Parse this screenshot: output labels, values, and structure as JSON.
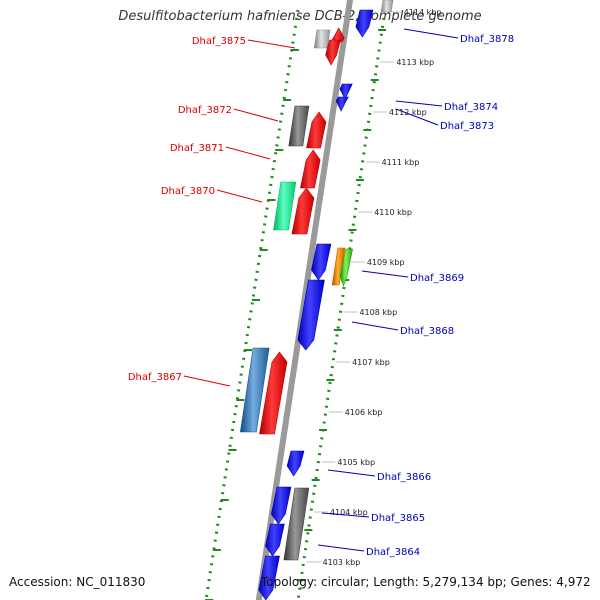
{
  "title": "Desulfitobacterium hafniense DCB-2, complete genome",
  "footer": {
    "accession": "Accession: NC_011830",
    "topology": "Topology: circular; Length: 5,279,134 bp; Genes: 4,972"
  },
  "colors": {
    "forward_label": "#dd0000",
    "reverse_label": "#0000bb",
    "backbone": "#9a9a9a",
    "dotted_track": "#228822",
    "gene_red": "#ee1111",
    "gene_blue": "#1a1aee",
    "gene_gray": "#6f6f6f",
    "gene_light_gray": "#bbbbbb",
    "gene_teal": "#33ee99",
    "gene_steelblue": "#4a84b8",
    "gene_orange": "#ff8800",
    "gene_green": "#55cc33"
  },
  "ticks": [
    {
      "label": "4114 kbp",
      "faded": true
    },
    {
      "label": "4113 kbp"
    },
    {
      "label": "4112 kbp"
    },
    {
      "label": "4111 kbp"
    },
    {
      "label": "4110 kbp"
    },
    {
      "label": "4109 kbp"
    },
    {
      "label": "4108 kbp"
    },
    {
      "label": "4107 kbp"
    },
    {
      "label": "4106 kbp"
    },
    {
      "label": "4105 kbp"
    },
    {
      "label": "4104 kbp"
    },
    {
      "label": "4103 kbp"
    }
  ],
  "forward_labels": [
    "Dhaf_3875",
    "Dhaf_3872",
    "Dhaf_3871",
    "Dhaf_3870",
    "Dhaf_3867"
  ],
  "reverse_labels": [
    "Dhaf_3878",
    "Dhaf_3874",
    "Dhaf_3873",
    "Dhaf_3869",
    "Dhaf_3868",
    "Dhaf_3866",
    "Dhaf_3865",
    "Dhaf_3864"
  ]
}
